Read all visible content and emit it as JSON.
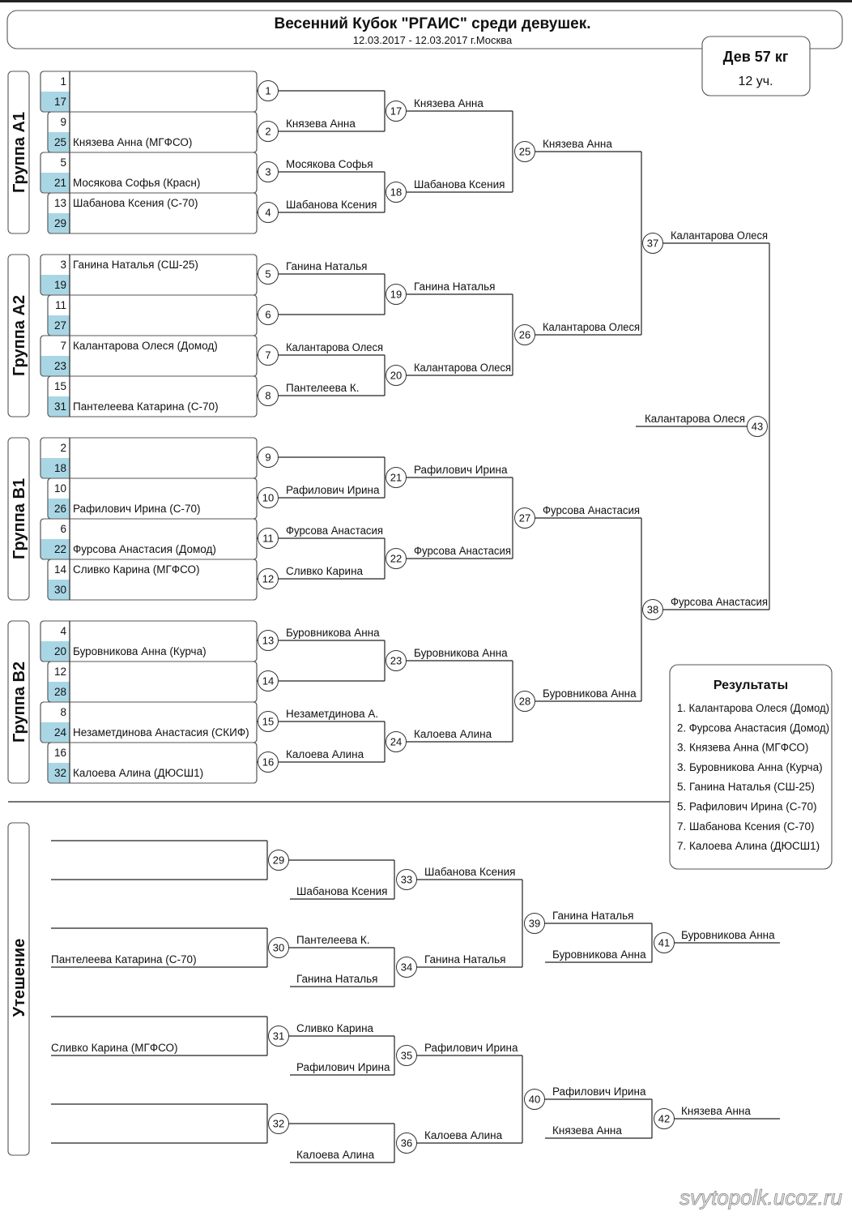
{
  "header": {
    "title": "Весенний Кубок \"РГАИС\" среди девушек.",
    "subtitle": "12.03.2017 - 12.03.2017 г.Москва"
  },
  "category": {
    "weight": "Дев 57 кг",
    "participants": "12 уч."
  },
  "colors": {
    "seed_highlight": "#a9d6e5",
    "line": "#222222"
  },
  "groups": [
    {
      "label": "Группа А1",
      "rows": [
        {
          "num": "1",
          "name": ""
        },
        {
          "num": "17",
          "name": ""
        },
        {
          "num": "9",
          "name": ""
        },
        {
          "num": "25",
          "name": "Князева Анна (МГФСО)"
        },
        {
          "num": "5",
          "name": ""
        },
        {
          "num": "21",
          "name": "Мосякова Софья (Красн)"
        },
        {
          "num": "13",
          "name": "Шабанова Ксения (С-70)"
        },
        {
          "num": "29",
          "name": ""
        }
      ]
    },
    {
      "label": "Группа А2",
      "rows": [
        {
          "num": "3",
          "name": "Ганина Наталья (СШ-25)"
        },
        {
          "num": "19",
          "name": ""
        },
        {
          "num": "11",
          "name": ""
        },
        {
          "num": "27",
          "name": ""
        },
        {
          "num": "7",
          "name": "Калантарова Олеся (Домод)"
        },
        {
          "num": "23",
          "name": ""
        },
        {
          "num": "15",
          "name": ""
        },
        {
          "num": "31",
          "name": "Пантелеева Катарина (С-70)"
        }
      ]
    },
    {
      "label": "Группа В1",
      "rows": [
        {
          "num": "2",
          "name": ""
        },
        {
          "num": "18",
          "name": ""
        },
        {
          "num": "10",
          "name": ""
        },
        {
          "num": "26",
          "name": "Рафилович Ирина (С-70)"
        },
        {
          "num": "6",
          "name": ""
        },
        {
          "num": "22",
          "name": "Фурсова Анастасия (Домод)"
        },
        {
          "num": "14",
          "name": "Сливко Карина (МГФСО)"
        },
        {
          "num": "30",
          "name": ""
        }
      ]
    },
    {
      "label": "Группа В2",
      "rows": [
        {
          "num": "4",
          "name": ""
        },
        {
          "num": "20",
          "name": "Буровникова Анна (Курча)"
        },
        {
          "num": "12",
          "name": ""
        },
        {
          "num": "28",
          "name": ""
        },
        {
          "num": "8",
          "name": ""
        },
        {
          "num": "24",
          "name": "Незаметдинова Анастасия (СКИФ)"
        },
        {
          "num": "16",
          "name": ""
        },
        {
          "num": "32",
          "name": "Калоева Алина (ДЮСШ1)"
        }
      ]
    }
  ],
  "main_rounds": [
    [
      {
        "num": "1",
        "winner": ""
      },
      {
        "num": "2",
        "winner": "Князева Анна"
      },
      {
        "num": "3",
        "winner": "Мосякова Софья"
      },
      {
        "num": "4",
        "winner": "Шабанова Ксения"
      },
      {
        "num": "5",
        "winner": "Ганина Наталья"
      },
      {
        "num": "6",
        "winner": ""
      },
      {
        "num": "7",
        "winner": "Калантарова Олеся"
      },
      {
        "num": "8",
        "winner": "Пантелеева К."
      },
      {
        "num": "9",
        "winner": ""
      },
      {
        "num": "10",
        "winner": "Рафилович Ирина"
      },
      {
        "num": "11",
        "winner": "Фурсова Анастасия"
      },
      {
        "num": "12",
        "winner": "Сливко Карина"
      },
      {
        "num": "13",
        "winner": "Буровникова Анна"
      },
      {
        "num": "14",
        "winner": ""
      },
      {
        "num": "15",
        "winner": "Незаметдинова А."
      },
      {
        "num": "16",
        "winner": "Калоева Алина"
      }
    ],
    [
      {
        "num": "17",
        "winner": "Князева Анна"
      },
      {
        "num": "18",
        "winner": "Шабанова Ксения"
      },
      {
        "num": "19",
        "winner": "Ганина Наталья"
      },
      {
        "num": "20",
        "winner": "Калантарова Олеся"
      },
      {
        "num": "21",
        "winner": "Рафилович Ирина"
      },
      {
        "num": "22",
        "winner": "Фурсова Анастасия"
      },
      {
        "num": "23",
        "winner": "Буровникова Анна"
      },
      {
        "num": "24",
        "winner": "Калоева Алина"
      }
    ],
    [
      {
        "num": "25",
        "winner": "Князева Анна"
      },
      {
        "num": "26",
        "winner": "Калантарова Олеся"
      },
      {
        "num": "27",
        "winner": "Фурсова Анастасия"
      },
      {
        "num": "28",
        "winner": "Буровникова Анна"
      }
    ],
    [
      {
        "num": "37",
        "winner": "Калантарова Олеся"
      },
      {
        "num": "38",
        "winner": "Фурсова Анастасия"
      }
    ]
  ],
  "final": {
    "num": "43",
    "winner": "Калантарова Олеся"
  },
  "consolation": {
    "label": "Утешение",
    "blocks": [
      {
        "r1": [
          {
            "num": "29",
            "top": "",
            "bottom": ""
          },
          {
            "num": "30",
            "top": "",
            "bottom": "Пантелеева Катарина (С-70)"
          }
        ],
        "r2": [
          {
            "num": "33",
            "top": "",
            "drop": "Шабанова Ксения",
            "winner": "Шабанова Ксения"
          },
          {
            "num": "34",
            "top": "Пантелеева К.",
            "drop": "Ганина Наталья",
            "winner": "Ганина Наталья"
          }
        ],
        "r3": {
          "num": "39",
          "top": "Ганина Наталья",
          "drop": "Буровникова Анна"
        },
        "final": {
          "num": "41",
          "winner": "Буровникова Анна"
        }
      },
      {
        "r1": [
          {
            "num": "31",
            "top": "",
            "bottom": "Сливко Карина (МГФСО)"
          },
          {
            "num": "32",
            "top": "",
            "bottom": ""
          }
        ],
        "r2": [
          {
            "num": "35",
            "top": "Сливко Карина",
            "drop": "Рафилович Ирина",
            "winner": "Рафилович Ирина"
          },
          {
            "num": "36",
            "top": "",
            "drop": "Калоева Алина",
            "winner": "Калоева Алина"
          }
        ],
        "r3": {
          "num": "40",
          "top": "Рафилович Ирина",
          "drop": "Князева Анна"
        },
        "final": {
          "num": "42",
          "winner": "Князева Анна"
        }
      }
    ]
  },
  "results": {
    "title": "Результаты",
    "items": [
      "1. Калантарова Олеся (Домод)",
      "2. Фурсова Анастасия (Домод)",
      "3. Князева Анна (МГФСО)",
      "3. Буровникова Анна (Курча)",
      "5. Ганина Наталья (СШ-25)",
      "5. Рафилович Ирина (С-70)",
      "7. Шабанова Ксения (С-70)",
      "7. Калоева Алина (ДЮСШ1)"
    ]
  },
  "watermark": "svytopolk.ucoz.ru"
}
